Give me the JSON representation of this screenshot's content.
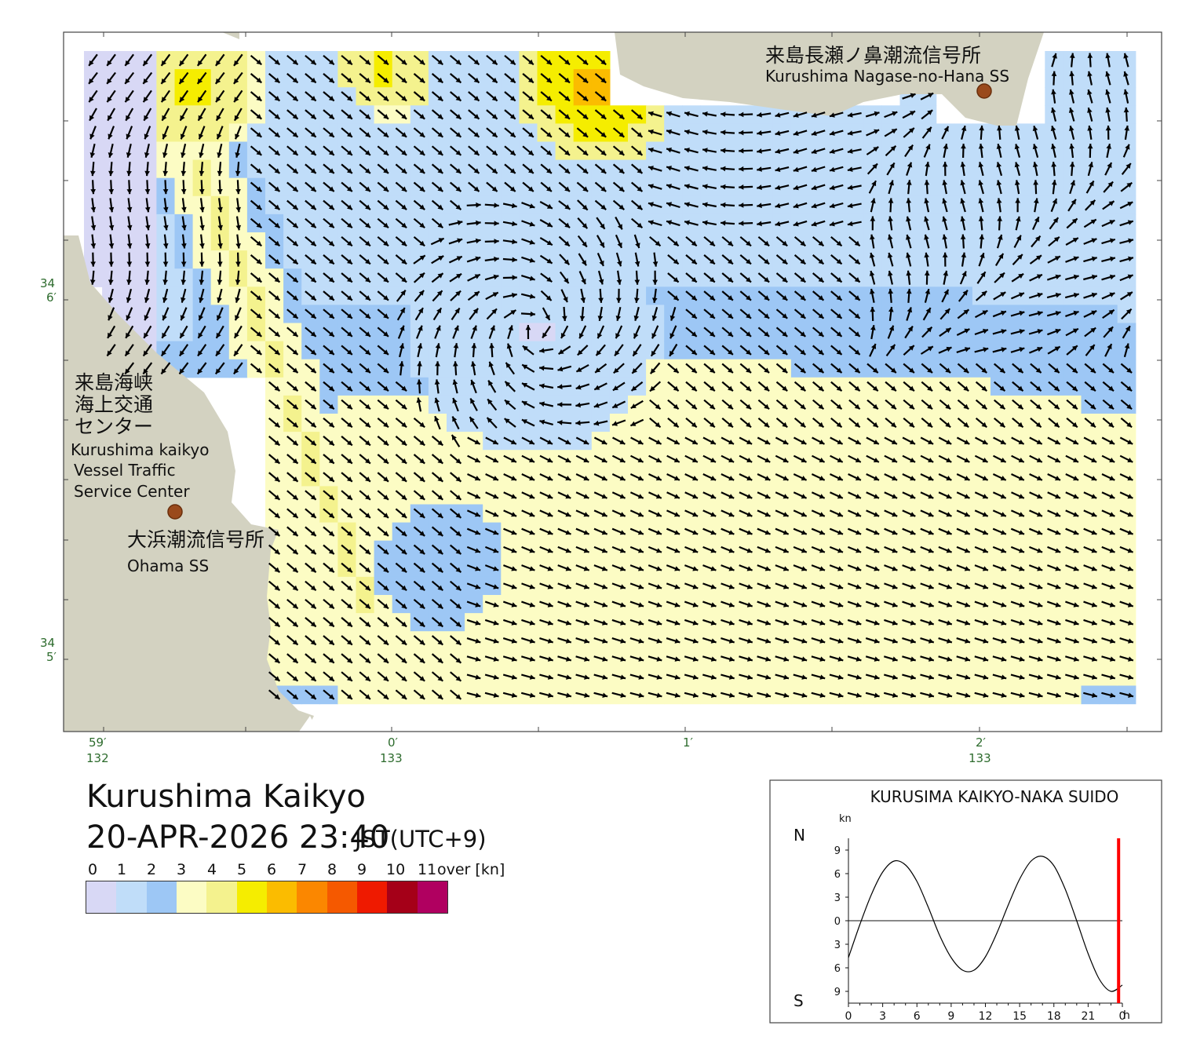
{
  "title": "Kurushima Kaikyo",
  "datetime": "20-APR-2026 23:40",
  "timezone": "JST(UTC+9)",
  "map": {
    "stations": [
      {
        "name_ja": "来島長瀬ノ鼻潮流信号所",
        "name_en": "Kurushima Nagase-no-Hana SS"
      },
      {
        "name_ja_lines": [
          "来島海峡",
          "海上交通",
          "センター"
        ],
        "name_en_lines": [
          "Kurushima kaikyo",
          "Vessel Traffic",
          "Service Center"
        ]
      },
      {
        "name_ja": "大浜潮流信号所",
        "name_en": "Ohama SS"
      }
    ],
    "lat_labels": [
      {
        "deg": "34",
        "min": "6′"
      },
      {
        "deg": "34",
        "min": "5′"
      }
    ],
    "lon_labels": [
      {
        "min": "59′",
        "deg": "132"
      },
      {
        "min": "0′",
        "deg": "133"
      },
      {
        "min": "1′",
        "deg": ""
      },
      {
        "min": "2′",
        "deg": "133"
      }
    ],
    "colors": {
      "land": "#d3d2c1",
      "sea_background": "#ffffff",
      "arrow": "#000000"
    }
  },
  "legend": {
    "labels": [
      "0",
      "1",
      "2",
      "3",
      "4",
      "5",
      "6",
      "7",
      "8",
      "9",
      "10",
      "11"
    ],
    "over_label": "over [kn]",
    "colors": [
      "#d8d8f5",
      "#c0ddf9",
      "#9dc7f5",
      "#fcfcc4",
      "#f4f28e",
      "#f5ed00",
      "#fbbc00",
      "#fb8700",
      "#f55900",
      "#ef1a00",
      "#a50018",
      "#b00060"
    ]
  },
  "tide_chart": {
    "title": "KURUSIMA KAIKYO-NAKA SUIDO",
    "unit": "kn",
    "north_label": "N",
    "south_label": "S",
    "y_tick_labels": [
      "9",
      "6",
      "3",
      "0",
      "3",
      "6",
      "9"
    ],
    "x_tick_labels": [
      "0",
      "3",
      "6",
      "9",
      "12",
      "15",
      "18",
      "21",
      "0"
    ],
    "x_unit": "h",
    "current_marker_color": "#ff0000",
    "line_color": "#000000"
  },
  "chart_data": {
    "type": "line",
    "title": "KURUSIMA KAIKYO-NAKA SUIDO",
    "ylabel": "kn",
    "xlabel": "h",
    "x": [
      0,
      1,
      2,
      3,
      4,
      5,
      6,
      7,
      8,
      9,
      10,
      11,
      12,
      13,
      14,
      15,
      16,
      17,
      18,
      19,
      20,
      21,
      22,
      23,
      24
    ],
    "series": [
      {
        "values": [
          -4.7,
          -0.5,
          3.3,
          6.2,
          7.6,
          7.1,
          5.0,
          1.7,
          -1.9,
          -4.7,
          -6.3,
          -6.3,
          -4.6,
          -1.6,
          2.0,
          5.3,
          7.6,
          8.2,
          7.0,
          4.0,
          0.0,
          -4.2,
          -7.5,
          -9.0,
          -8.2
        ]
      }
    ],
    "current_time_h": 23.67,
    "xlim": [
      0,
      24
    ],
    "ylim": [
      -10.5,
      10.5
    ],
    "y_ticks_abs": [
      9,
      6,
      3,
      0,
      3,
      6,
      9
    ],
    "x_ticks": [
      0,
      3,
      6,
      9,
      12,
      15,
      18,
      21,
      24
    ]
  }
}
